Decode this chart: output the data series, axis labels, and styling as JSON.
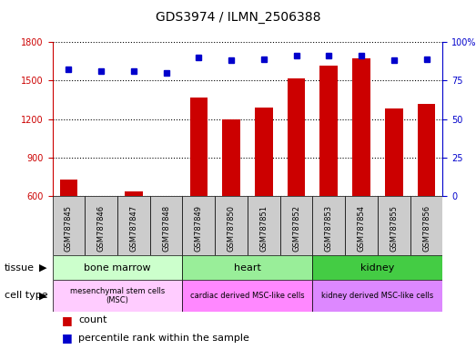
{
  "title": "GDS3974 / ILMN_2506388",
  "samples": [
    "GSM787845",
    "GSM787846",
    "GSM787847",
    "GSM787848",
    "GSM787849",
    "GSM787850",
    "GSM787851",
    "GSM787852",
    "GSM787853",
    "GSM787854",
    "GSM787855",
    "GSM787856"
  ],
  "counts": [
    730,
    593,
    637,
    587,
    1370,
    1200,
    1290,
    1520,
    1615,
    1670,
    1285,
    1320
  ],
  "percentile_ranks": [
    82,
    81,
    81,
    80,
    90,
    88,
    89,
    91,
    91,
    91,
    88,
    89
  ],
  "bar_color": "#cc0000",
  "dot_color": "#0000cc",
  "ylim_left": [
    600,
    1800
  ],
  "ylim_right": [
    0,
    100
  ],
  "yticks_left": [
    600,
    900,
    1200,
    1500,
    1800
  ],
  "yticks_right": [
    0,
    25,
    50,
    75,
    100
  ],
  "tissue_groups": [
    {
      "label": "bone marrow",
      "start": 0,
      "end": 3,
      "color": "#ccffcc"
    },
    {
      "label": "heart",
      "start": 4,
      "end": 7,
      "color": "#99ee99"
    },
    {
      "label": "kidney",
      "start": 8,
      "end": 11,
      "color": "#44cc44"
    }
  ],
  "cell_type_groups": [
    {
      "label": "mesenchymal stem cells\n(MSC)",
      "start": 0,
      "end": 3,
      "color": "#ffccff"
    },
    {
      "label": "cardiac derived MSC-like cells",
      "start": 4,
      "end": 7,
      "color": "#ff88ff"
    },
    {
      "label": "kidney derived MSC-like cells",
      "start": 8,
      "end": 11,
      "color": "#dd88ff"
    }
  ],
  "sample_bg_color": "#cccccc",
  "plot_bg_color": "#ffffff",
  "grid_color": "#000000",
  "left_axis_color": "#cc0000",
  "right_axis_color": "#0000cc",
  "title_fontsize": 10,
  "tick_fontsize": 7,
  "sample_fontsize": 6
}
